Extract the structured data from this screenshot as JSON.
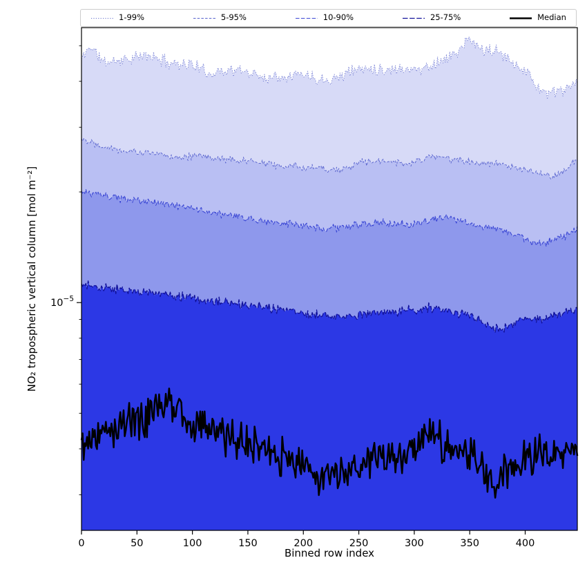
{
  "figure": {
    "background": "#ffffff"
  },
  "chart_data": {
    "type": "area",
    "title": "",
    "xlabel": "Binned row index",
    "ylabel": "NO₂ tropospheric vertical column [mol m⁻²]",
    "x_range": [
      0,
      447
    ],
    "x_ticks": [
      0,
      50,
      100,
      150,
      200,
      250,
      300,
      350,
      400
    ],
    "y_scale": "log",
    "ylim": [
      2.4e-06,
      5.6e-05
    ],
    "y_ticks": [
      {
        "value": 1e-05,
        "label": "10⁻⁵",
        "base": "10",
        "exponent": "−5"
      }
    ],
    "grid": false,
    "legend_position": "top expanded, 5 columns, framed",
    "series": [
      {
        "name": "1-99%",
        "role": "99th-percentile upper edge (1st percentile below axis range)",
        "line_color": "#6670cc",
        "line_style": "dotted",
        "line_width": 0.9,
        "fill_below": "#d7daf7",
        "noise": 0.03,
        "anchors": [
          [
            0,
            4.6e-05
          ],
          [
            8,
            5e-05
          ],
          [
            20,
            4.5e-05
          ],
          [
            40,
            4.6e-05
          ],
          [
            60,
            4.7e-05
          ],
          [
            80,
            4.5e-05
          ],
          [
            100,
            4.45e-05
          ],
          [
            115,
            4.2e-05
          ],
          [
            130,
            4.3e-05
          ],
          [
            150,
            4.25e-05
          ],
          [
            165,
            4.1e-05
          ],
          [
            180,
            4.15e-05
          ],
          [
            200,
            4.2e-05
          ],
          [
            215,
            4.05e-05
          ],
          [
            230,
            4.1e-05
          ],
          [
            245,
            4.3e-05
          ],
          [
            260,
            4.35e-05
          ],
          [
            275,
            4.3e-05
          ],
          [
            290,
            4.35e-05
          ],
          [
            305,
            4.3e-05
          ],
          [
            320,
            4.5e-05
          ],
          [
            335,
            4.7e-05
          ],
          [
            350,
            5.2e-05
          ],
          [
            360,
            4.9e-05
          ],
          [
            375,
            4.8e-05
          ],
          [
            390,
            4.5e-05
          ],
          [
            400,
            4.3e-05
          ],
          [
            410,
            3.9e-05
          ],
          [
            420,
            3.7e-05
          ],
          [
            430,
            3.75e-05
          ],
          [
            440,
            3.85e-05
          ],
          [
            447,
            3.9e-05
          ]
        ]
      },
      {
        "name": "5-95%",
        "role": "95th-percentile upper edge",
        "line_color": "#5560cc",
        "line_style": "dash-fine",
        "line_width": 0.9,
        "fill_below": "#b9bff3",
        "noise": 0.018,
        "anchors": [
          [
            0,
            2.8e-05
          ],
          [
            15,
            2.7e-05
          ],
          [
            35,
            2.6e-05
          ],
          [
            60,
            2.55e-05
          ],
          [
            85,
            2.5e-05
          ],
          [
            110,
            2.5e-05
          ],
          [
            135,
            2.45e-05
          ],
          [
            160,
            2.4e-05
          ],
          [
            185,
            2.35e-05
          ],
          [
            210,
            2.33e-05
          ],
          [
            235,
            2.3e-05
          ],
          [
            255,
            2.42e-05
          ],
          [
            275,
            2.42e-05
          ],
          [
            295,
            2.38e-05
          ],
          [
            315,
            2.5e-05
          ],
          [
            335,
            2.45e-05
          ],
          [
            355,
            2.42e-05
          ],
          [
            375,
            2.38e-05
          ],
          [
            395,
            2.3e-05
          ],
          [
            410,
            2.25e-05
          ],
          [
            425,
            2.2e-05
          ],
          [
            437,
            2.3e-05
          ],
          [
            447,
            2.5e-05
          ]
        ]
      },
      {
        "name": "10-90%",
        "role": "90th-percentile upper edge",
        "line_color": "#3a46d4",
        "line_style": "dashed",
        "line_width": 1.1,
        "fill_below": "#8e98ec",
        "noise": 0.018,
        "anchors": [
          [
            0,
            2e-05
          ],
          [
            20,
            1.95e-05
          ],
          [
            45,
            1.9e-05
          ],
          [
            70,
            1.87e-05
          ],
          [
            95,
            1.82e-05
          ],
          [
            120,
            1.75e-05
          ],
          [
            145,
            1.7e-05
          ],
          [
            170,
            1.66e-05
          ],
          [
            195,
            1.62e-05
          ],
          [
            220,
            1.58e-05
          ],
          [
            245,
            1.62e-05
          ],
          [
            270,
            1.65e-05
          ],
          [
            295,
            1.63e-05
          ],
          [
            315,
            1.68e-05
          ],
          [
            335,
            1.7e-05
          ],
          [
            355,
            1.62e-05
          ],
          [
            375,
            1.58e-05
          ],
          [
            395,
            1.52e-05
          ],
          [
            412,
            1.44e-05
          ],
          [
            425,
            1.48e-05
          ],
          [
            437,
            1.52e-05
          ],
          [
            447,
            1.6e-05
          ]
        ]
      },
      {
        "name": "25-75%",
        "role": "75th-percentile upper edge",
        "line_color": "#111199",
        "line_style": "dashed-long",
        "line_width": 1.3,
        "fill_below": "#2c38e5",
        "noise": 0.022,
        "anchors": [
          [
            0,
            1.12e-05
          ],
          [
            15,
            1.1e-05
          ],
          [
            40,
            1.08e-05
          ],
          [
            65,
            1.06e-05
          ],
          [
            90,
            1.04e-05
          ],
          [
            115,
            1.01e-05
          ],
          [
            140,
            9.9e-06
          ],
          [
            165,
            9.7e-06
          ],
          [
            190,
            9.5e-06
          ],
          [
            215,
            9.2e-06
          ],
          [
            240,
            9.2e-06
          ],
          [
            265,
            9.4e-06
          ],
          [
            290,
            9.5e-06
          ],
          [
            310,
            9.7e-06
          ],
          [
            330,
            9.5e-06
          ],
          [
            350,
            9.2e-06
          ],
          [
            365,
            8.8e-06
          ],
          [
            378,
            8.4e-06
          ],
          [
            392,
            8.9e-06
          ],
          [
            405,
            9e-06
          ],
          [
            420,
            9.1e-06
          ],
          [
            435,
            9.3e-06
          ],
          [
            447,
            9.7e-06
          ]
        ]
      },
      {
        "name": "Median",
        "role": "median line",
        "line_color": "#000000",
        "line_style": "solid",
        "line_width": 2.5,
        "fill_below": null,
        "noise": 0.09,
        "anchors": [
          [
            0,
            4.1e-06
          ],
          [
            10,
            4.5e-06
          ],
          [
            20,
            4.4e-06
          ],
          [
            30,
            4.6e-06
          ],
          [
            45,
            4.8e-06
          ],
          [
            60,
            4.9e-06
          ],
          [
            75,
            5.4e-06
          ],
          [
            85,
            5.1e-06
          ],
          [
            95,
            4.9e-06
          ],
          [
            105,
            4.7e-06
          ],
          [
            115,
            4.6e-06
          ],
          [
            125,
            4.4e-06
          ],
          [
            135,
            4.3e-06
          ],
          [
            145,
            4.2e-06
          ],
          [
            155,
            4.1e-06
          ],
          [
            165,
            4e-06
          ],
          [
            175,
            3.9e-06
          ],
          [
            185,
            3.8e-06
          ],
          [
            195,
            3.7e-06
          ],
          [
            205,
            3.5e-06
          ],
          [
            215,
            3.3e-06
          ],
          [
            225,
            3.4e-06
          ],
          [
            235,
            3.5e-06
          ],
          [
            245,
            3.6e-06
          ],
          [
            255,
            3.6e-06
          ],
          [
            265,
            3.7e-06
          ],
          [
            275,
            3.8e-06
          ],
          [
            285,
            3.85e-06
          ],
          [
            295,
            3.9e-06
          ],
          [
            305,
            4.1e-06
          ],
          [
            315,
            4.5e-06
          ],
          [
            322,
            4.3e-06
          ],
          [
            330,
            4e-06
          ],
          [
            340,
            3.9e-06
          ],
          [
            350,
            3.85e-06
          ],
          [
            360,
            3.6e-06
          ],
          [
            370,
            3.2e-06
          ],
          [
            378,
            3.4e-06
          ],
          [
            386,
            3.6e-06
          ],
          [
            395,
            3.7e-06
          ],
          [
            405,
            3.8e-06
          ],
          [
            415,
            3.9e-06
          ],
          [
            425,
            3.85e-06
          ],
          [
            435,
            3.8e-06
          ],
          [
            447,
            4.2e-06
          ]
        ]
      }
    ]
  }
}
